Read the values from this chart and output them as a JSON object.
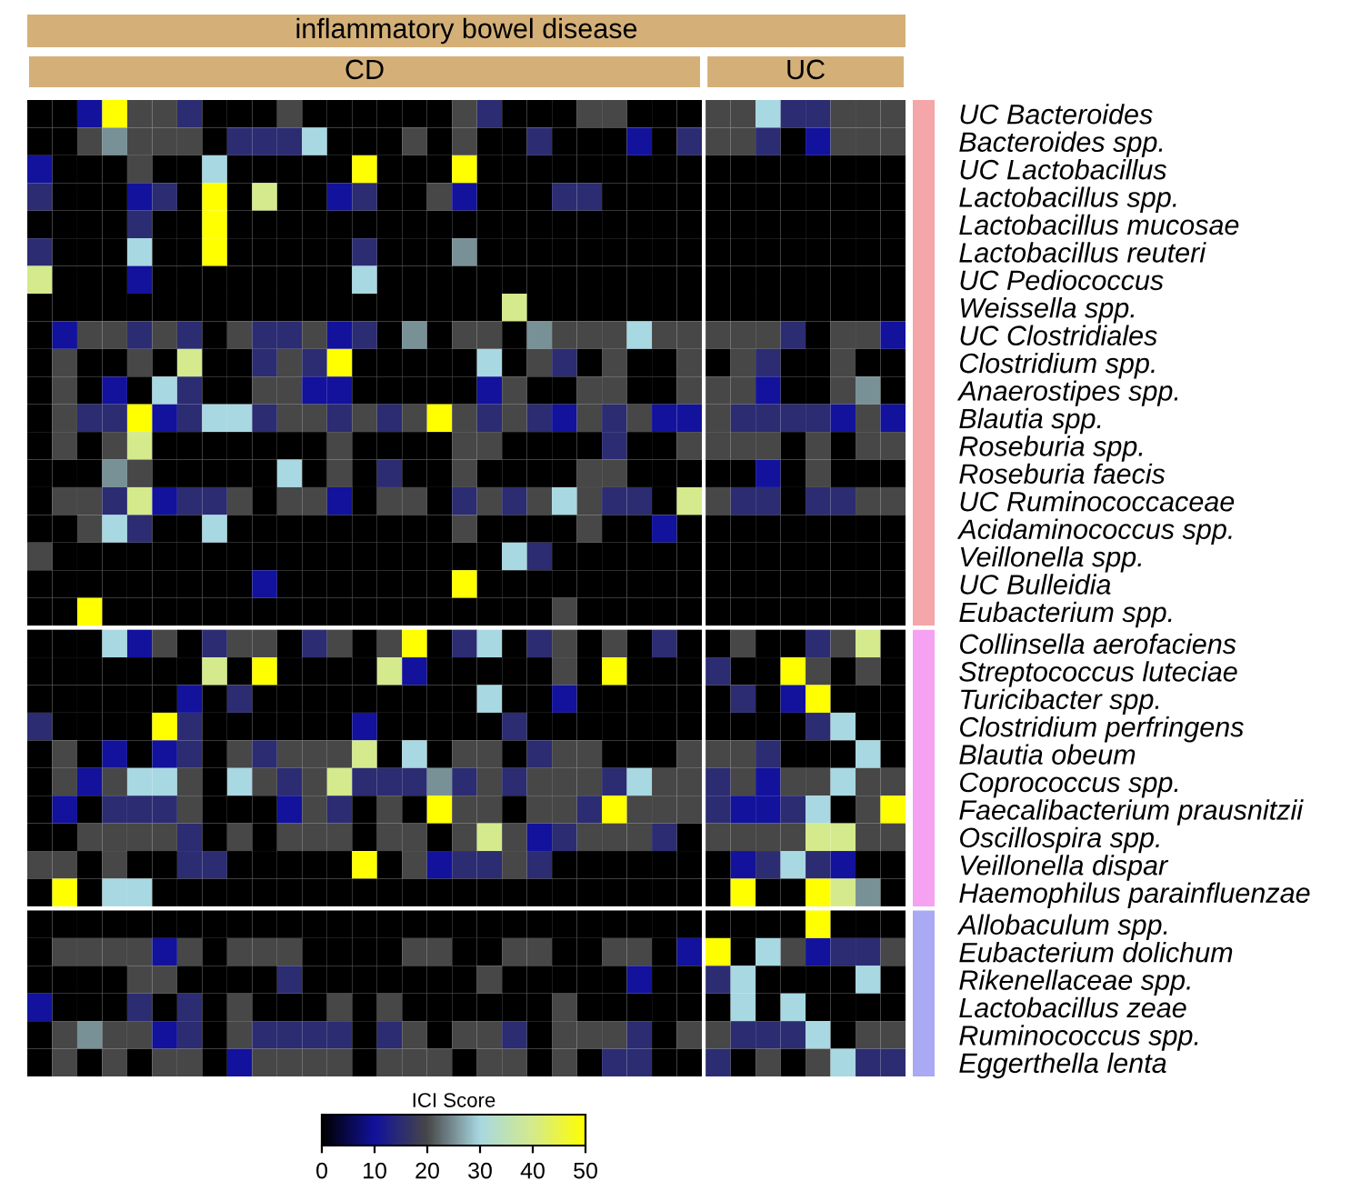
{
  "chart_data": {
    "type": "heatmap",
    "title": "inflammatory bowel disease",
    "annotations": [
      "CD",
      "UC"
    ],
    "clim": [
      0,
      50
    ],
    "clabel": "ICI Score",
    "cticks": [
      0,
      10,
      20,
      30,
      40,
      50
    ],
    "categories": [
      null,
      null,
      null,
      null,
      null,
      null,
      null,
      null,
      null,
      null,
      null,
      null,
      null,
      null,
      null,
      null,
      null,
      null,
      null,
      null,
      null,
      null,
      null,
      null,
      null,
      null,
      null,
      null,
      null,
      null,
      null,
      null,
      null,
      null,
      null
    ],
    "y_categories": [
      "UC Bacteroides",
      "Bacteroides spp.",
      "UC Lactobacillus",
      "Lactobacillus spp.",
      "Lactobacillus mucosae",
      "Lactobacillus reuteri",
      "UC Pediococcus",
      "Weissella spp.",
      "UC Clostridiales",
      "Clostridium spp.",
      "Anaerostipes spp.",
      "Blautia spp.",
      "Roseburia spp.",
      "Roseburia faecis",
      "UC Ruminococcaceae",
      "Acidaminococcus spp.",
      "Veillonella spp.",
      "UC Bulleidia",
      "Eubacterium spp.",
      "Collinsella aerofaciens",
      "Streptococcus luteciae",
      "Turicibacter spp.",
      "Clostridium perfringens",
      "Blautia obeum",
      "Coprococcus spp.",
      "Faecalibacterium prausnitzii",
      "Oscillospira spp.",
      "Veillonella dispar",
      "Haemophilus parainfluenzae",
      "Allobaculum spp.",
      "Eubacterium dolichum",
      "Rikenellaceae spp.",
      "Lactobacillus zeae",
      "Ruminococcus spp.",
      "Eggerthella lenta"
    ],
    "cells": [
      [
        0,
        0,
        10,
        50,
        20,
        20,
        15,
        0,
        0,
        0,
        20,
        0,
        0,
        0,
        0,
        0,
        0,
        20,
        15,
        0,
        0,
        0,
        20,
        20,
        0,
        0,
        0,
        20,
        20,
        30,
        15,
        15,
        20,
        20,
        20
      ],
      [
        0,
        0,
        20,
        25,
        20,
        20,
        20,
        0,
        15,
        15,
        15,
        30,
        0,
        0,
        0,
        20,
        0,
        20,
        0,
        0,
        15,
        0,
        0,
        0,
        10,
        0,
        15,
        20,
        20,
        15,
        0,
        10,
        20,
        20,
        20
      ],
      [
        10,
        0,
        0,
        0,
        20,
        0,
        0,
        30,
        0,
        0,
        0,
        0,
        0,
        50,
        0,
        0,
        0,
        50,
        0,
        0,
        0,
        0,
        0,
        0,
        0,
        0,
        0,
        0,
        0,
        0,
        0,
        0,
        0,
        0,
        0
      ],
      [
        15,
        0,
        0,
        0,
        10,
        15,
        0,
        50,
        0,
        40,
        0,
        0,
        10,
        15,
        0,
        0,
        20,
        10,
        0,
        0,
        0,
        15,
        15,
        0,
        0,
        0,
        0,
        0,
        0,
        0,
        0,
        0,
        0,
        0,
        0
      ],
      [
        0,
        0,
        0,
        0,
        15,
        0,
        0,
        50,
        0,
        0,
        0,
        0,
        0,
        0,
        0,
        0,
        0,
        0,
        0,
        0,
        0,
        0,
        0,
        0,
        0,
        0,
        0,
        0,
        0,
        0,
        0,
        0,
        0,
        0,
        0
      ],
      [
        15,
        0,
        0,
        0,
        30,
        0,
        0,
        50,
        0,
        0,
        0,
        0,
        0,
        15,
        0,
        0,
        0,
        25,
        0,
        0,
        0,
        0,
        0,
        0,
        0,
        0,
        0,
        0,
        0,
        0,
        0,
        0,
        0,
        0,
        0
      ],
      [
        40,
        0,
        0,
        0,
        10,
        0,
        0,
        0,
        0,
        0,
        0,
        0,
        0,
        30,
        0,
        0,
        0,
        0,
        0,
        0,
        0,
        0,
        0,
        0,
        0,
        0,
        0,
        0,
        0,
        0,
        0,
        0,
        0,
        0,
        0
      ],
      [
        0,
        0,
        0,
        0,
        0,
        0,
        0,
        0,
        0,
        0,
        0,
        0,
        0,
        0,
        0,
        0,
        0,
        0,
        0,
        40,
        0,
        0,
        0,
        0,
        0,
        0,
        0,
        0,
        0,
        0,
        0,
        0,
        0,
        0,
        0
      ],
      [
        0,
        10,
        20,
        20,
        15,
        20,
        15,
        0,
        20,
        15,
        15,
        20,
        10,
        15,
        0,
        25,
        0,
        20,
        20,
        0,
        25,
        20,
        20,
        20,
        30,
        20,
        20,
        20,
        20,
        20,
        15,
        0,
        20,
        20,
        10
      ],
      [
        0,
        20,
        0,
        0,
        20,
        0,
        40,
        0,
        0,
        15,
        20,
        15,
        50,
        0,
        0,
        0,
        0,
        0,
        30,
        0,
        20,
        15,
        0,
        20,
        0,
        0,
        20,
        0,
        20,
        15,
        0,
        0,
        20,
        0,
        0
      ],
      [
        0,
        20,
        0,
        10,
        0,
        30,
        15,
        0,
        0,
        20,
        20,
        10,
        10,
        0,
        0,
        0,
        0,
        0,
        10,
        20,
        0,
        0,
        20,
        20,
        0,
        0,
        20,
        20,
        20,
        10,
        0,
        0,
        20,
        25,
        0
      ],
      [
        0,
        20,
        15,
        15,
        50,
        10,
        15,
        30,
        30,
        15,
        20,
        20,
        15,
        20,
        15,
        20,
        50,
        20,
        15,
        20,
        15,
        10,
        20,
        15,
        20,
        10,
        10,
        20,
        15,
        15,
        15,
        15,
        10,
        20,
        10
      ],
      [
        0,
        20,
        0,
        20,
        40,
        0,
        0,
        0,
        0,
        0,
        0,
        0,
        20,
        0,
        0,
        0,
        0,
        20,
        20,
        0,
        0,
        0,
        0,
        15,
        0,
        0,
        20,
        20,
        20,
        20,
        0,
        20,
        0,
        20,
        20
      ],
      [
        0,
        0,
        0,
        25,
        20,
        0,
        0,
        0,
        0,
        0,
        30,
        0,
        20,
        0,
        15,
        0,
        0,
        20,
        0,
        0,
        0,
        0,
        20,
        20,
        0,
        0,
        0,
        0,
        0,
        10,
        0,
        20,
        0,
        0,
        0
      ],
      [
        0,
        20,
        20,
        15,
        40,
        10,
        15,
        15,
        20,
        0,
        20,
        20,
        10,
        0,
        20,
        20,
        0,
        15,
        20,
        15,
        20,
        30,
        20,
        15,
        15,
        0,
        40,
        20,
        15,
        15,
        0,
        15,
        15,
        20,
        20
      ],
      [
        0,
        0,
        20,
        30,
        15,
        0,
        0,
        30,
        0,
        0,
        0,
        0,
        0,
        0,
        0,
        0,
        0,
        20,
        0,
        0,
        0,
        0,
        20,
        0,
        0,
        10,
        0,
        0,
        0,
        0,
        0,
        0,
        0,
        0,
        0
      ],
      [
        20,
        0,
        0,
        0,
        0,
        0,
        0,
        0,
        0,
        0,
        0,
        0,
        0,
        0,
        0,
        0,
        0,
        0,
        0,
        30,
        15,
        0,
        0,
        0,
        0,
        0,
        0,
        0,
        0,
        0,
        0,
        0,
        0,
        0,
        0
      ],
      [
        0,
        0,
        0,
        0,
        0,
        0,
        0,
        0,
        0,
        10,
        0,
        0,
        0,
        0,
        0,
        0,
        0,
        50,
        0,
        0,
        0,
        0,
        0,
        0,
        0,
        0,
        0,
        0,
        0,
        0,
        0,
        0,
        0,
        0,
        0
      ],
      [
        0,
        0,
        50,
        0,
        0,
        0,
        0,
        0,
        0,
        0,
        0,
        0,
        0,
        0,
        0,
        0,
        0,
        0,
        0,
        0,
        0,
        20,
        0,
        0,
        0,
        0,
        0,
        0,
        0,
        0,
        0,
        0,
        0,
        0,
        0
      ],
      [
        0,
        0,
        0,
        30,
        10,
        20,
        0,
        15,
        20,
        20,
        0,
        15,
        20,
        0,
        20,
        50,
        0,
        15,
        30,
        0,
        15,
        20,
        0,
        20,
        0,
        15,
        0,
        0,
        20,
        0,
        0,
        15,
        20,
        40,
        0
      ],
      [
        0,
        0,
        0,
        0,
        0,
        0,
        0,
        40,
        0,
        50,
        0,
        0,
        0,
        0,
        40,
        10,
        0,
        0,
        0,
        0,
        0,
        20,
        0,
        50,
        0,
        0,
        0,
        15,
        0,
        0,
        50,
        20,
        0,
        20,
        0
      ],
      [
        0,
        0,
        0,
        0,
        0,
        0,
        10,
        0,
        15,
        0,
        0,
        0,
        0,
        0,
        0,
        0,
        0,
        0,
        30,
        0,
        0,
        10,
        0,
        0,
        0,
        0,
        0,
        0,
        15,
        0,
        10,
        50,
        0,
        0,
        0
      ],
      [
        15,
        0,
        0,
        0,
        0,
        50,
        15,
        0,
        0,
        0,
        0,
        0,
        0,
        10,
        0,
        0,
        0,
        0,
        0,
        15,
        0,
        0,
        0,
        0,
        0,
        0,
        0,
        0,
        0,
        0,
        0,
        15,
        30,
        0,
        0
      ],
      [
        0,
        20,
        0,
        10,
        0,
        10,
        15,
        0,
        20,
        15,
        20,
        20,
        20,
        40,
        0,
        30,
        0,
        20,
        20,
        0,
        15,
        20,
        20,
        0,
        0,
        0,
        20,
        20,
        20,
        15,
        0,
        0,
        0,
        30,
        0
      ],
      [
        0,
        20,
        10,
        20,
        30,
        30,
        20,
        0,
        30,
        20,
        15,
        20,
        40,
        15,
        15,
        15,
        25,
        15,
        20,
        15,
        20,
        20,
        20,
        15,
        30,
        20,
        20,
        15,
        20,
        10,
        20,
        20,
        30,
        20,
        20
      ],
      [
        0,
        10,
        0,
        15,
        15,
        15,
        20,
        0,
        0,
        0,
        10,
        20,
        15,
        0,
        20,
        0,
        50,
        20,
        20,
        0,
        20,
        20,
        15,
        50,
        20,
        20,
        20,
        15,
        10,
        10,
        15,
        30,
        0,
        20,
        50
      ],
      [
        0,
        0,
        20,
        20,
        20,
        20,
        15,
        0,
        20,
        0,
        20,
        20,
        20,
        0,
        20,
        20,
        0,
        20,
        40,
        20,
        10,
        15,
        20,
        20,
        20,
        15,
        0,
        20,
        20,
        20,
        20,
        40,
        40,
        20,
        20
      ],
      [
        20,
        20,
        0,
        20,
        0,
        0,
        15,
        15,
        0,
        0,
        0,
        0,
        0,
        50,
        0,
        20,
        10,
        15,
        15,
        20,
        15,
        0,
        0,
        0,
        0,
        0,
        0,
        0,
        10,
        15,
        30,
        15,
        10,
        0,
        0
      ],
      [
        0,
        50,
        0,
        30,
        30,
        0,
        0,
        0,
        0,
        0,
        0,
        0,
        0,
        0,
        0,
        0,
        0,
        0,
        0,
        0,
        0,
        0,
        0,
        0,
        0,
        0,
        0,
        0,
        50,
        0,
        0,
        50,
        40,
        25,
        0
      ],
      [
        0,
        0,
        0,
        0,
        0,
        0,
        0,
        0,
        0,
        0,
        0,
        0,
        0,
        0,
        0,
        0,
        0,
        0,
        0,
        0,
        0,
        0,
        0,
        0,
        0,
        0,
        0,
        0,
        0,
        0,
        0,
        50,
        0,
        0,
        0
      ],
      [
        0,
        20,
        20,
        20,
        20,
        10,
        20,
        0,
        20,
        20,
        20,
        0,
        0,
        0,
        0,
        20,
        20,
        0,
        0,
        20,
        20,
        0,
        0,
        20,
        20,
        0,
        10,
        50,
        0,
        30,
        20,
        10,
        15,
        15,
        20
      ],
      [
        0,
        0,
        0,
        0,
        20,
        20,
        0,
        0,
        0,
        0,
        15,
        0,
        0,
        0,
        0,
        0,
        0,
        0,
        20,
        0,
        0,
        0,
        0,
        0,
        10,
        0,
        0,
        15,
        30,
        0,
        0,
        0,
        0,
        30,
        0
      ],
      [
        10,
        0,
        0,
        0,
        15,
        0,
        15,
        0,
        20,
        0,
        0,
        0,
        20,
        0,
        20,
        0,
        0,
        0,
        0,
        0,
        0,
        20,
        0,
        0,
        0,
        0,
        0,
        0,
        30,
        0,
        30,
        0,
        0,
        0,
        0
      ],
      [
        0,
        20,
        25,
        20,
        20,
        10,
        15,
        0,
        20,
        15,
        15,
        15,
        15,
        0,
        15,
        20,
        0,
        20,
        20,
        15,
        0,
        20,
        20,
        20,
        15,
        0,
        20,
        20,
        15,
        15,
        15,
        30,
        0,
        20,
        20
      ],
      [
        0,
        20,
        0,
        20,
        0,
        20,
        20,
        0,
        10,
        20,
        20,
        20,
        20,
        0,
        20,
        20,
        20,
        0,
        20,
        20,
        0,
        20,
        0,
        15,
        15,
        0,
        0,
        15,
        0,
        20,
        0,
        20,
        30,
        15,
        15
      ]
    ]
  }
}
